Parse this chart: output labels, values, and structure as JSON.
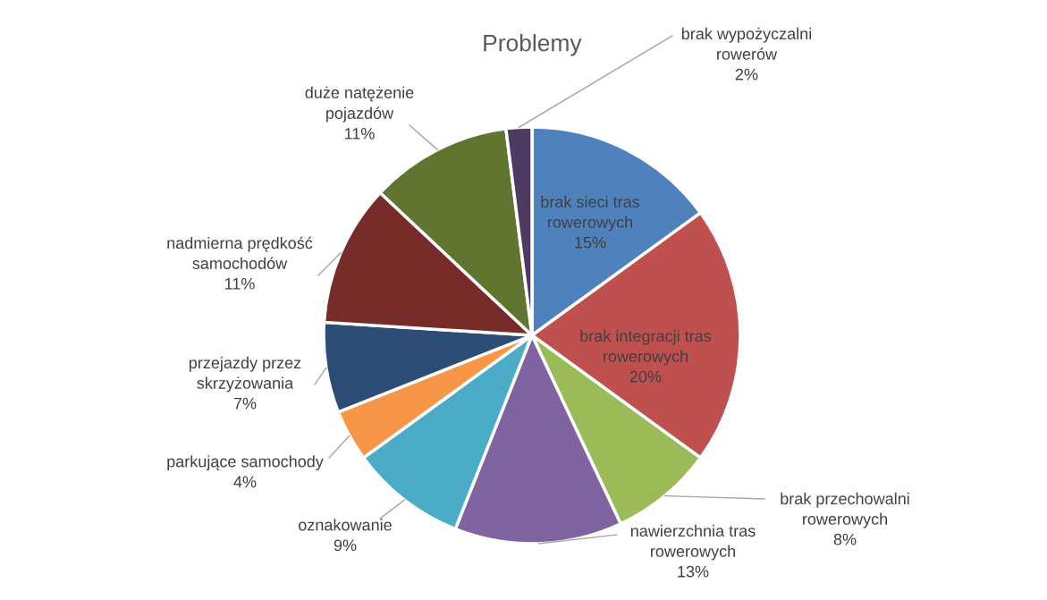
{
  "chart_data": {
    "type": "pie",
    "title": "Problemy",
    "categories": [
      "brak sieci tras rowerowych",
      "brak integracji tras rowerowych",
      "brak przechowalni rowerowych",
      "nawierzchnia tras rowerowych",
      "oznakowanie",
      "parkujące samochody",
      "przejazdy przez skrzyżowania",
      "nadmierna prędkość samochodów",
      "duże natężenie pojazdów",
      "brak wypożyczalni rowerów"
    ],
    "values": [
      15,
      20,
      8,
      13,
      9,
      4,
      7,
      11,
      11,
      2
    ],
    "colors": [
      "#4f81bd",
      "#c0504d",
      "#9bbb59",
      "#8064a2",
      "#4bacc6",
      "#f79646",
      "#2c4d75",
      "#772c2a",
      "#5f7530",
      "#4d3b62"
    ],
    "value_labels": [
      "15%",
      "20%",
      "8%",
      "13%",
      "9%",
      "4%",
      "7%",
      "11%",
      "11%",
      "2%"
    ]
  }
}
